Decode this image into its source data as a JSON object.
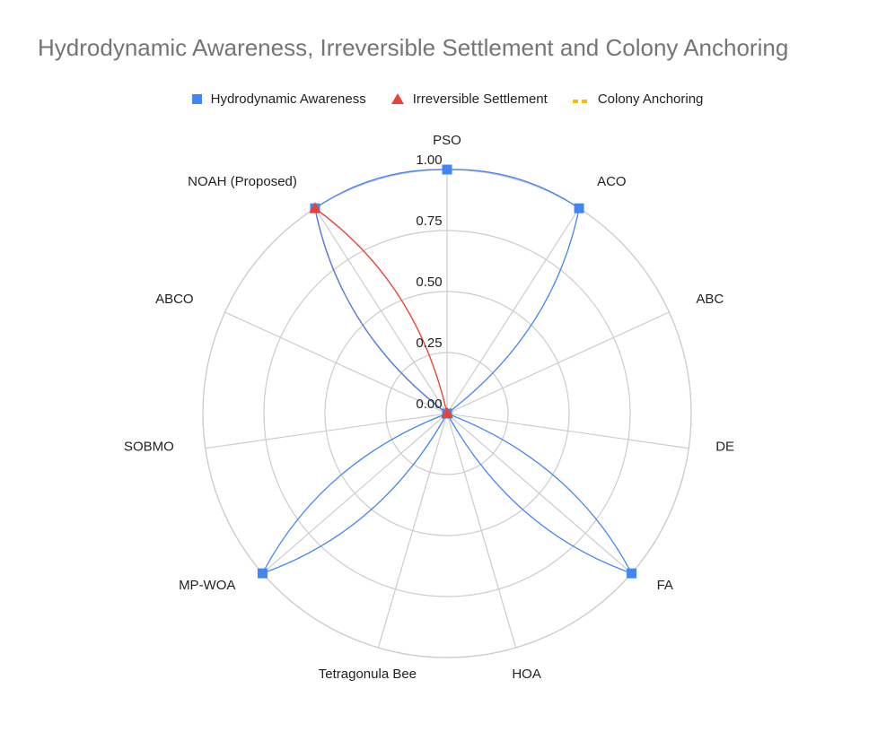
{
  "chart_data": {
    "type": "radar",
    "title": "Hydrodynamic Awareness, Irreversible Settlement and Colony Anchoring",
    "categories": [
      "PSO",
      "ACO",
      "ABC",
      "DE",
      "FA",
      "HOA",
      "Tetragonula Bee",
      "MP-WOA",
      "SOBMO",
      "ABCO",
      "NOAH (Proposed)"
    ],
    "radial_ticks": [
      "0.00",
      "0.25",
      "0.50",
      "0.75",
      "1.00"
    ],
    "rlim": [
      0,
      1
    ],
    "legend_position": "top",
    "series": [
      {
        "name": "Hydrodynamic Awareness",
        "values": [
          1,
          1,
          0,
          0,
          1,
          0,
          0,
          1,
          0,
          0,
          1
        ],
        "color": "#4285f4",
        "marker": "square"
      },
      {
        "name": "Irreversible Settlement",
        "values": [
          0,
          0,
          0,
          0,
          0,
          0,
          0,
          0,
          0,
          0,
          1
        ],
        "color": "#ea4335",
        "marker": "triangle"
      },
      {
        "name": "Colony Anchoring",
        "values": [
          0,
          0,
          0,
          0,
          0,
          0,
          0,
          0,
          0,
          0,
          1
        ],
        "color": "#fbbc04",
        "marker": "dash"
      }
    ]
  }
}
